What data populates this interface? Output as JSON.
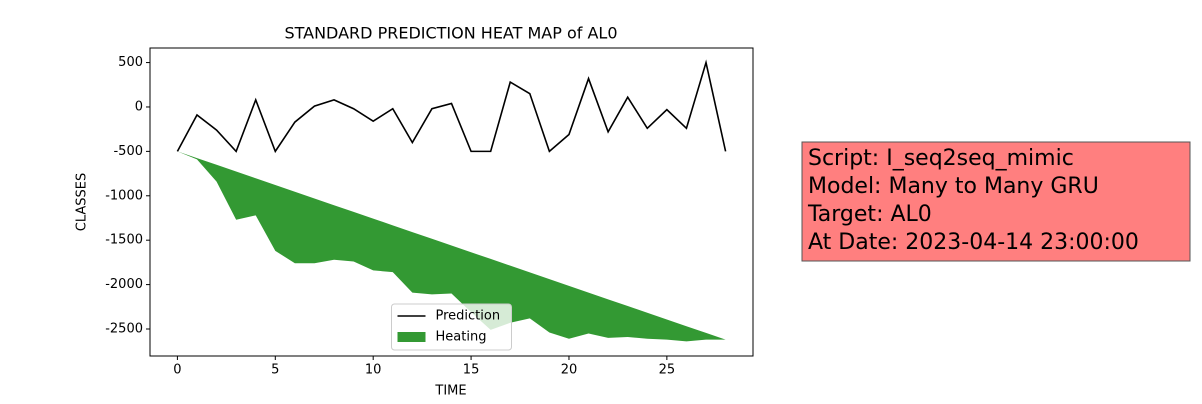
{
  "chart_data": {
    "type": "fill_between_line",
    "title": "STANDARD PREDICTION HEAT MAP of AL0",
    "x_label": "TIME",
    "y_label": "CLASSES",
    "x": [
      0,
      1,
      2,
      3,
      4,
      5,
      6,
      7,
      8,
      9,
      10,
      11,
      12,
      13,
      14,
      15,
      16,
      17,
      18,
      19,
      20,
      21,
      22,
      23,
      24,
      25,
      26,
      27,
      28
    ],
    "series": [
      {
        "name": "Prediction",
        "color": "#000000",
        "kind": "line",
        "values": [
          -500,
          -90,
          -260,
          -500,
          80,
          -500,
          -170,
          10,
          80,
          -20,
          -160,
          -20,
          -400,
          -20,
          40,
          -500,
          -500,
          280,
          150,
          -500,
          -310,
          320,
          -280,
          110,
          -240,
          -30,
          -240,
          500,
          -500
        ]
      },
      {
        "name": "Heating",
        "color": "#339933",
        "kind": "area",
        "lower": [
          -500,
          -590,
          -840,
          -1270,
          -1220,
          -1620,
          -1760,
          -1760,
          -1720,
          -1740,
          -1840,
          -1860,
          -2090,
          -2110,
          -2100,
          -2310,
          -2510,
          -2430,
          -2380,
          -2540,
          -2610,
          -2550,
          -2600,
          -2590,
          -2610,
          -2620,
          -2640,
          -2620,
          -2620
        ],
        "upper": [
          -500,
          -576,
          -651,
          -727,
          -803,
          -879,
          -954,
          -1030,
          -1106,
          -1181,
          -1257,
          -1333,
          -1409,
          -1484,
          -1560,
          -1636,
          -1711,
          -1787,
          -1863,
          -1939,
          -2014,
          -2090,
          -2166,
          -2241,
          -2317,
          -2393,
          -2469,
          -2544,
          -2620
        ]
      }
    ],
    "xlim": [
      -1.4,
      29.4
    ],
    "ylim": [
      -2804,
      664
    ],
    "xticks": [
      0,
      5,
      10,
      15,
      20,
      25
    ],
    "yticks": [
      500,
      0,
      -500,
      -1000,
      -1500,
      -2000,
      -2500
    ],
    "legend": "lower center",
    "annotation": {
      "lines": [
        "Script: I_seq2seq_mimic",
        "Model: Many to Many GRU",
        "Target: AL0",
        "At Date: 2023-04-14 23:00:00"
      ],
      "color": "#ff7f7f"
    }
  }
}
